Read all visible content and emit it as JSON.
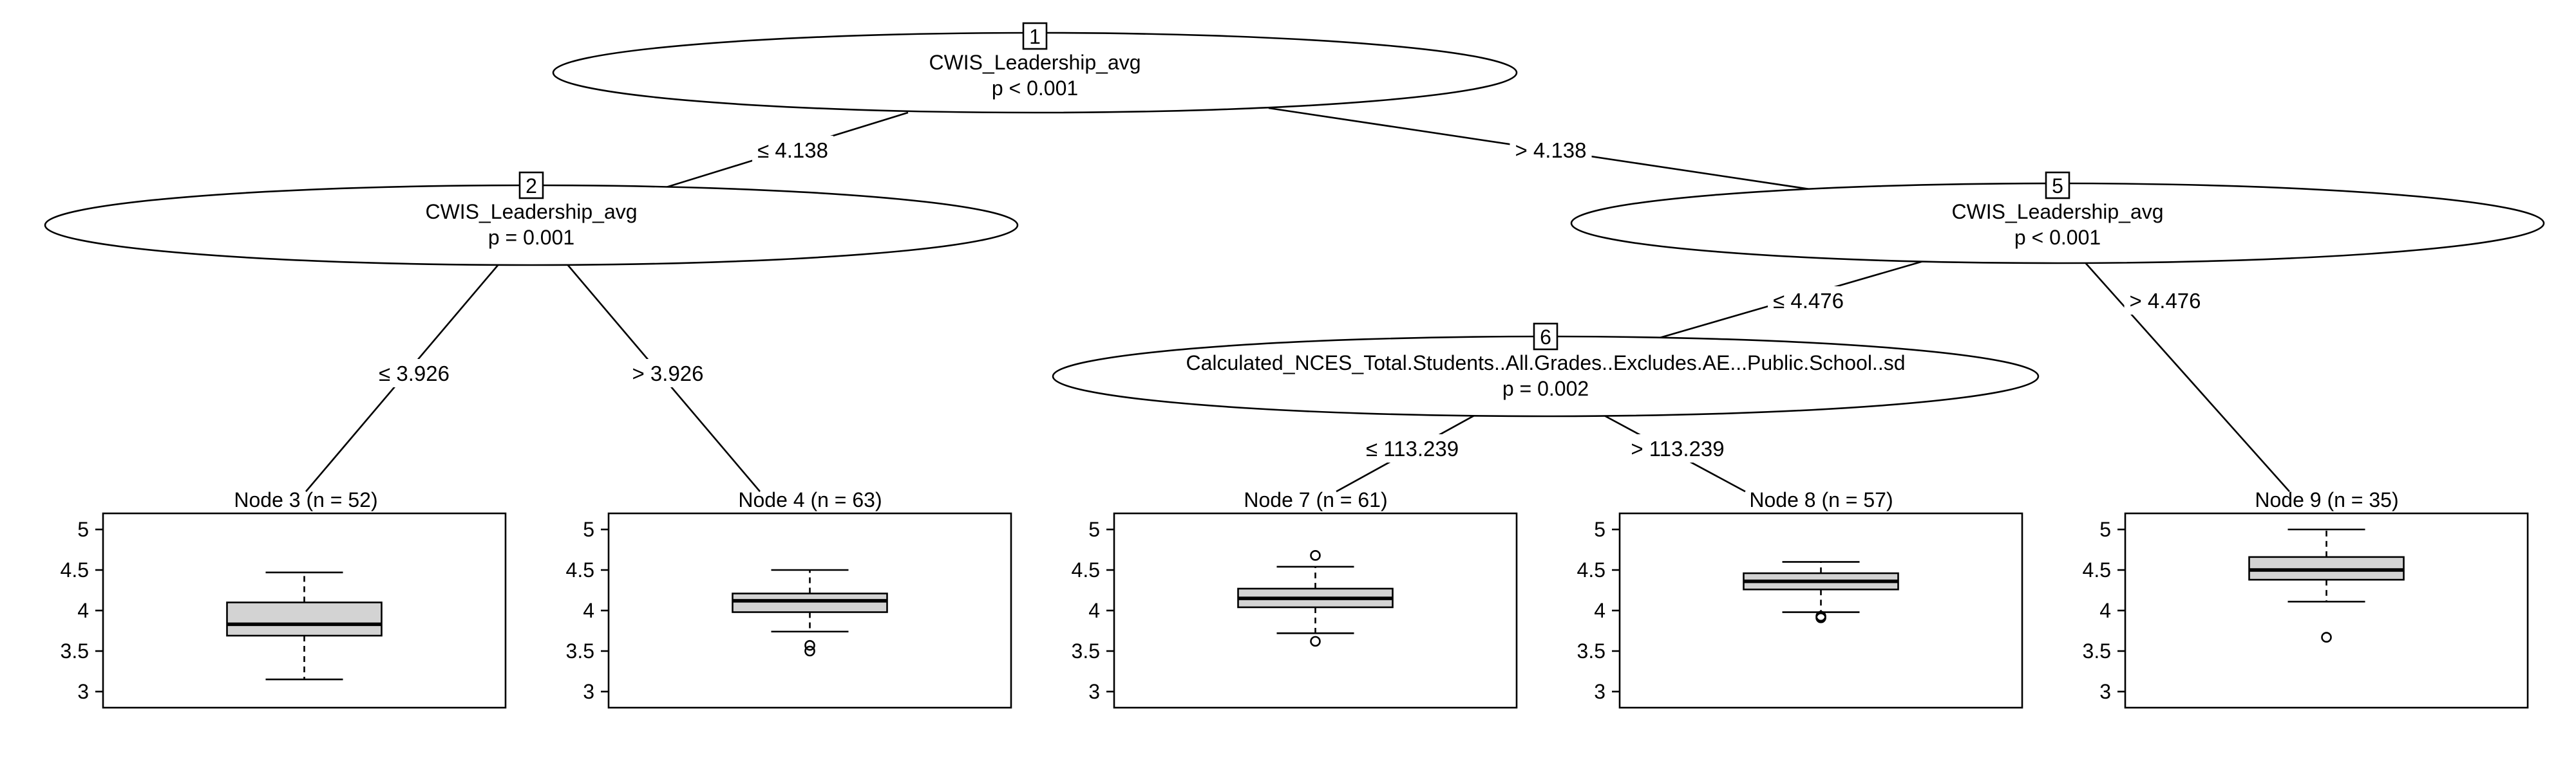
{
  "inner_nodes": [
    {
      "id": "1",
      "variable": "CWIS_Leadership_avg",
      "p_label": "p < 0.001"
    },
    {
      "id": "2",
      "variable": "CWIS_Leadership_avg",
      "p_label": "p = 0.001"
    },
    {
      "id": "5",
      "variable": "CWIS_Leadership_avg",
      "p_label": "p < 0.001"
    },
    {
      "id": "6",
      "variable": "Calculated_NCES_Total.Students..All.Grades..Excludes.AE...Public.School..sd",
      "p_label": "p = 0.002"
    }
  ],
  "edges": [
    {
      "from": "1",
      "to": "2",
      "label": "≤ 4.138"
    },
    {
      "from": "1",
      "to": "5",
      "label": "> 4.138"
    },
    {
      "from": "2",
      "to": "3",
      "label": "≤ 3.926"
    },
    {
      "from": "2",
      "to": "4",
      "label": "> 3.926"
    },
    {
      "from": "5",
      "to": "6",
      "label": "≤ 4.476"
    },
    {
      "from": "5",
      "to": "9",
      "label": "> 4.476"
    },
    {
      "from": "6",
      "to": "7",
      "label": "≤ 113.239"
    },
    {
      "from": "6",
      "to": "8",
      "label": "> 113.239"
    }
  ],
  "chart_data": {
    "type": "boxplot",
    "y_axis": {
      "range": [
        3,
        5
      ],
      "ticks": [
        "3",
        "3.5",
        "4",
        "4.5",
        "5"
      ]
    },
    "terminal_nodes": [
      {
        "id": "3",
        "title": "Node 3 (n = 52)",
        "n": 52,
        "whisker_low": 3.15,
        "q1": 3.69,
        "median": 3.83,
        "q3": 4.1,
        "whisker_high": 4.47,
        "outliers": []
      },
      {
        "id": "4",
        "title": "Node 4 (n = 63)",
        "n": 63,
        "whisker_low": 3.74,
        "q1": 3.98,
        "median": 4.12,
        "q3": 4.21,
        "whisker_high": 4.5,
        "outliers": [
          3.5,
          3.57
        ]
      },
      {
        "id": "7",
        "title": "Node 7 (n = 61)",
        "n": 61,
        "whisker_low": 3.72,
        "q1": 4.04,
        "median": 4.15,
        "q3": 4.27,
        "whisker_high": 4.54,
        "outliers": [
          3.62,
          4.68
        ]
      },
      {
        "id": "8",
        "title": "Node 8 (n = 57)",
        "n": 57,
        "whisker_low": 3.98,
        "q1": 4.26,
        "median": 4.36,
        "q3": 4.46,
        "whisker_high": 4.6,
        "outliers": [
          3.91,
          3.93
        ]
      },
      {
        "id": "9",
        "title": "Node 9 (n = 35)",
        "n": 35,
        "whisker_low": 4.11,
        "q1": 4.38,
        "median": 4.5,
        "q3": 4.66,
        "whisker_high": 5.0,
        "outliers": [
          3.67
        ]
      }
    ]
  }
}
